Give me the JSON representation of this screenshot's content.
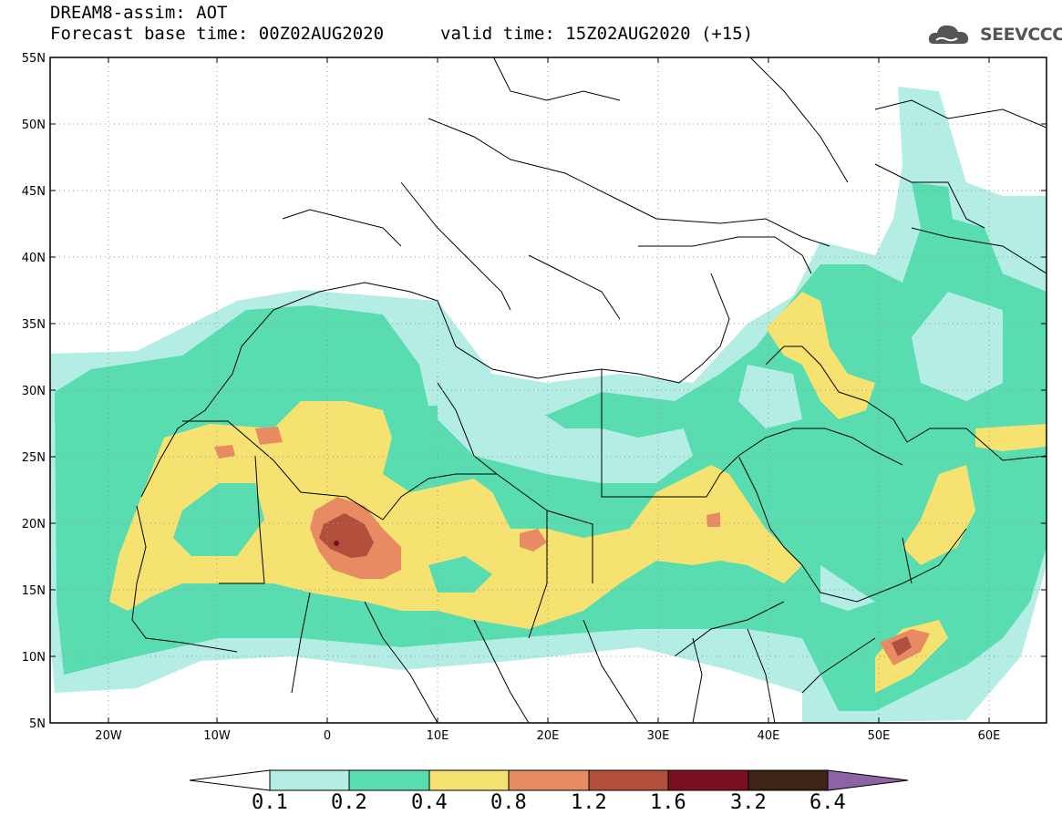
{
  "header": {
    "title": "DREAM8-assim: AOT",
    "base_time": "Forecast base time: 00Z02AUG2020",
    "valid_time": "valid time: 15Z02AUG2020 (+15)",
    "logo_text": "SEEVCCC"
  },
  "map": {
    "lat_labels": [
      "55N",
      "50N",
      "45N",
      "40N",
      "35N",
      "30N",
      "25N",
      "20N",
      "15N",
      "10N",
      "5N"
    ],
    "lon_labels": [
      "20W",
      "10W",
      "0",
      "10E",
      "20E",
      "30E",
      "40E",
      "50E",
      "60E"
    ],
    "lat_range": [
      5,
      55
    ],
    "lon_range": [
      -25,
      65
    ]
  },
  "legend": {
    "levels": [
      "0.1",
      "0.2",
      "0.4",
      "0.8",
      "1.2",
      "1.6",
      "3.2",
      "6.4"
    ],
    "colors": [
      "#b4ede4",
      "#59dcb0",
      "#f5e271",
      "#e88b63",
      "#b24f3c",
      "#7a0f24",
      "#3d2417",
      "#8d63a5"
    ]
  }
}
